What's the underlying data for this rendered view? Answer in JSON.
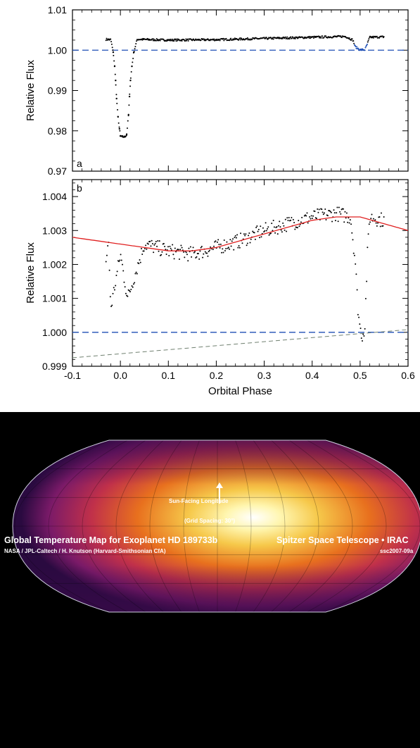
{
  "chart_data": [
    {
      "type": "scatter",
      "panel": "a",
      "xlim": [
        -0.1,
        0.6
      ],
      "ylim": [
        0.97,
        1.01
      ],
      "ylabel": "Relative Flux",
      "xlabel": "",
      "y_ticks": [
        "0.97",
        "0.98",
        "0.99",
        "1.00",
        "1.01"
      ],
      "reference_line": {
        "y": 1.0,
        "style": "dashed",
        "color": "#1f4fb5"
      },
      "series": [
        {
          "points": [
            [
              -0.03,
              1.0027
            ],
            [
              -0.02,
              1.0026
            ],
            [
              -0.015,
              0.9995
            ],
            [
              -0.012,
              0.996
            ],
            [
              -0.01,
              0.9925
            ],
            [
              -0.008,
              0.988
            ],
            [
              -0.005,
              0.9835
            ],
            [
              -0.002,
              0.9805
            ],
            [
              0.0,
              0.9787
            ],
            [
              0.005,
              0.9785
            ],
            [
              0.009,
              0.9785
            ],
            [
              0.013,
              0.979
            ],
            [
              0.017,
              0.984
            ],
            [
              0.019,
              0.9885
            ],
            [
              0.021,
              0.9925
            ],
            [
              0.024,
              0.996
            ],
            [
              0.028,
              0.9995
            ],
            [
              0.035,
              1.0027
            ],
            [
              0.1,
              1.0025
            ],
            [
              0.2,
              1.0026
            ],
            [
              0.3,
              1.0029
            ],
            [
              0.4,
              1.0032
            ],
            [
              0.47,
              1.0034
            ],
            [
              0.485,
              1.0025
            ],
            [
              0.49,
              1.0008
            ],
            [
              0.5,
              1.0001
            ],
            [
              0.51,
              1.0001
            ],
            [
              0.515,
              1.0015
            ],
            [
              0.52,
              1.0032
            ],
            [
              0.55,
              1.0033
            ]
          ]
        }
      ]
    },
    {
      "type": "scatter",
      "panel": "b",
      "xlim": [
        -0.1,
        0.6
      ],
      "ylim": [
        0.999,
        1.0045
      ],
      "xlabel": "Orbital Phase",
      "ylabel": "Relative Flux",
      "x_ticks": [
        "-0.1",
        "0.0",
        "0.1",
        "0.2",
        "0.3",
        "0.4",
        "0.5",
        "0.6"
      ],
      "y_ticks": [
        "0.999",
        "1.000",
        "1.001",
        "1.002",
        "1.003",
        "1.004"
      ],
      "reference_line": {
        "y": 1.0,
        "style": "dashed",
        "color": "#1f4fb5"
      },
      "model_curve": {
        "color": "#e02020",
        "points": [
          [
            -0.1,
            1.0028
          ],
          [
            0.0,
            1.0026
          ],
          [
            0.1,
            1.0024
          ],
          [
            0.15,
            1.0024
          ],
          [
            0.2,
            1.0025
          ],
          [
            0.3,
            1.0029
          ],
          [
            0.4,
            1.0033
          ],
          [
            0.45,
            1.0034
          ],
          [
            0.5,
            1.0034
          ],
          [
            0.55,
            1.0032
          ],
          [
            0.6,
            1.003
          ]
        ]
      },
      "baseline_trend": {
        "color": "#708070",
        "style": "dashed",
        "points": [
          [
            -0.1,
            0.99925
          ],
          [
            0.6,
            1.00008
          ]
        ]
      },
      "series": [
        {
          "points": [
            [
              -0.03,
              1.0021
            ],
            [
              -0.025,
              1.0027
            ],
            [
              -0.02,
              1.0007
            ],
            [
              0.0,
              1.0023
            ],
            [
              0.015,
              1.001
            ],
            [
              0.05,
              1.0026
            ],
            [
              0.1,
              1.0024
            ],
            [
              0.15,
              1.0023
            ],
            [
              0.2,
              1.0025
            ],
            [
              0.25,
              1.0027
            ],
            [
              0.3,
              1.003
            ],
            [
              0.35,
              1.0032
            ],
            [
              0.4,
              1.0034
            ],
            [
              0.45,
              1.0035
            ],
            [
              0.48,
              1.0034
            ],
            [
              0.49,
              1.0021
            ],
            [
              0.495,
              1.0008
            ],
            [
              0.5,
              1.0001
            ],
            [
              0.505,
              0.9999
            ],
            [
              0.51,
              1.0002
            ],
            [
              0.515,
              1.0022
            ],
            [
              0.52,
              1.0034
            ],
            [
              0.55,
              1.0033
            ]
          ]
        }
      ]
    }
  ],
  "map": {
    "sun_label": "Sun-Facing Longitude",
    "grid_label": "(Grid Spacing: 30°)",
    "title": "Global Temperature Map for Exoplanet HD 189733b",
    "credit": "NASA / JPL-Caltech / H. Knutson (Harvard-Smithsonian CfA)",
    "telescope": "Spitzer Space Telescope • IRAC",
    "image_id": "ssc2007-09a",
    "colors": {
      "hot": "#ffffff",
      "warm": "#f8e060",
      "mid": "#e0601a",
      "cool": "#8a1f6a",
      "cold": "#2a0a40",
      "background": "#000000"
    }
  }
}
